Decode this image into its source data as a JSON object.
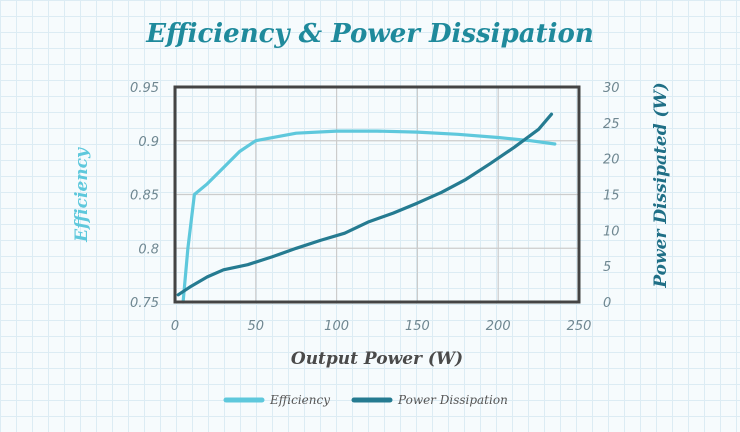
{
  "chart_data": {
    "type": "line",
    "title": "Efficiency & Power Dissipation",
    "xlabel": "Output Power (W)",
    "ylabel_left": "Efficiency",
    "ylabel_right": "Power Dissipated (W)",
    "xlim": [
      0,
      250
    ],
    "ylim_left": [
      0.75,
      0.95
    ],
    "ylim_right": [
      0,
      30
    ],
    "x_ticks": [
      "0",
      "50",
      "100",
      "150",
      "200",
      "250"
    ],
    "y_left_ticks": [
      "0.75",
      "0.8",
      "0.85",
      "0.9",
      "0.95"
    ],
    "y_right_ticks": [
      "0",
      "5",
      "10",
      "15",
      "20",
      "25",
      "30"
    ],
    "grid": true,
    "legend_position": "bottom",
    "series": [
      {
        "name": "Efficiency",
        "axis": "left",
        "color": "#5ec8dc",
        "x": [
          5,
          8,
          12,
          20,
          30,
          40,
          50,
          75,
          100,
          125,
          150,
          175,
          200,
          220,
          235
        ],
        "y": [
          0.75,
          0.8,
          0.85,
          0.86,
          0.875,
          0.89,
          0.9,
          0.907,
          0.909,
          0.909,
          0.908,
          0.906,
          0.903,
          0.9,
          0.897
        ]
      },
      {
        "name": "Power Dissipation",
        "axis": "right",
        "color": "#257b91",
        "x": [
          2,
          10,
          20,
          30,
          45,
          60,
          75,
          90,
          105,
          120,
          135,
          150,
          165,
          180,
          195,
          210,
          225,
          233
        ],
        "y": [
          1,
          2.2,
          3.5,
          4.5,
          5.2,
          6.3,
          7.5,
          8.6,
          9.6,
          11.2,
          12.4,
          13.8,
          15.3,
          17.1,
          19.3,
          21.6,
          24.1,
          26.2
        ]
      }
    ]
  },
  "colors": {
    "title": "#1f8a9c",
    "efficiency": "#5ec8dc",
    "power": "#257b91",
    "axis_left_label": "#5ec8dc",
    "axis_right_label": "#1f6f86",
    "x_label": "#4a4a4a",
    "frame": "#444444",
    "gridline": "#cccccc"
  }
}
